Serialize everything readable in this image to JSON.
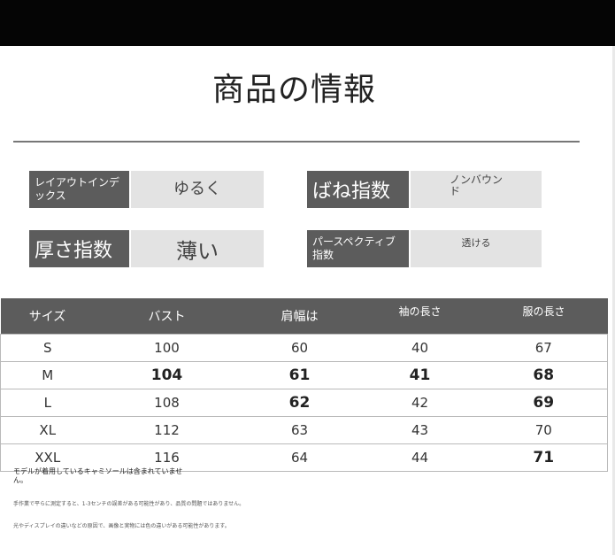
{
  "title": "商品の情報",
  "attributes": [
    {
      "label": "レイアウトインデックス",
      "value": "ゆるく"
    },
    {
      "label": "ばね指数",
      "value": "ノンバウンド"
    },
    {
      "label": "厚さ指数",
      "value": "薄い"
    },
    {
      "label": "パースペクティブ指数",
      "value": "透ける"
    }
  ],
  "size_table": {
    "headers": [
      "サイズ",
      "バスト",
      "肩幅は",
      "袖の長さ",
      "服の長さ"
    ],
    "rows": [
      [
        "S",
        "100",
        "60",
        "40",
        "67"
      ],
      [
        "M",
        "104",
        "61",
        "41",
        "68"
      ],
      [
        "L",
        "108",
        "62",
        "42",
        "69"
      ],
      [
        "XL",
        "112",
        "63",
        "43",
        "70"
      ],
      [
        "XXL",
        "116",
        "64",
        "44",
        "71"
      ]
    ]
  },
  "notes": [
    "モデルが着用しているキャミソールは含まれていません。",
    "手作業で平らに測定すると、1-3センチの誤差がある可能性があり、品質の問題ではありません。",
    "光やディスプレイの違いなどの原因で、画像と実物には色の違いがある可能性があります。"
  ]
}
